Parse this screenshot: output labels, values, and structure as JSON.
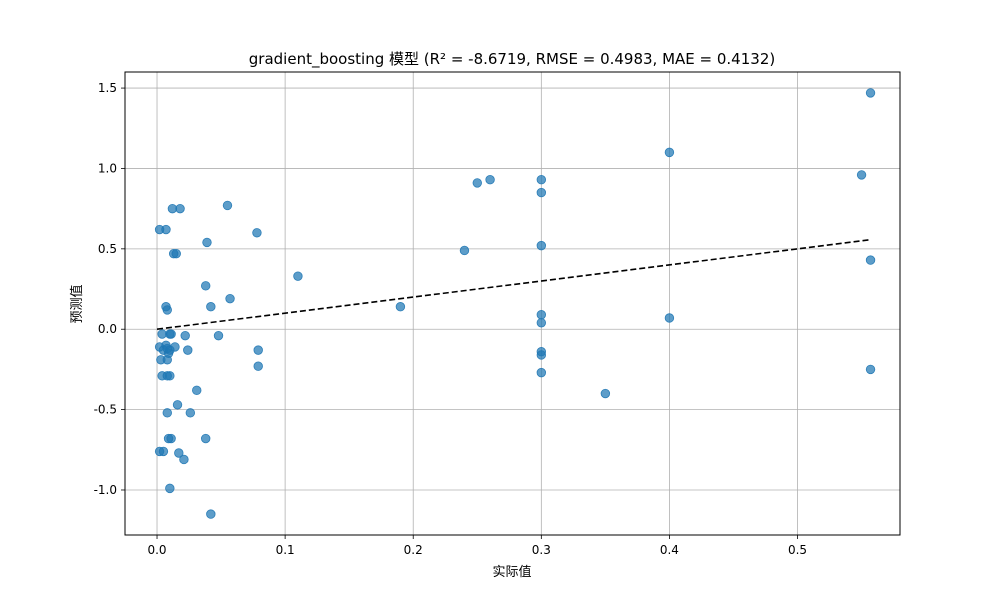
{
  "chart_data": {
    "type": "scatter",
    "title": "gradient_boosting 模型 (R² = -8.6719, RMSE = 0.4983, MAE = 0.4132)",
    "xlabel": "实际值",
    "ylabel": "预测值",
    "xlim": [
      -0.025,
      0.58
    ],
    "ylim": [
      -1.28,
      1.6
    ],
    "x_ticks": [
      0.0,
      0.1,
      0.2,
      0.3,
      0.4,
      0.5
    ],
    "x_tick_labels": [
      "0.0",
      "0.1",
      "0.2",
      "0.3",
      "0.4",
      "0.5"
    ],
    "y_ticks": [
      -1.0,
      -0.5,
      0.0,
      0.5,
      1.0,
      1.5
    ],
    "y_tick_labels": [
      "-1.0",
      "-0.5",
      "0.0",
      "0.5",
      "1.0",
      "1.5"
    ],
    "grid": true,
    "point_color": "#1f77b4",
    "reference_line": {
      "style": "dashed",
      "color": "#000000",
      "x": [
        0.0,
        0.557
      ],
      "y": [
        0.0,
        0.557
      ]
    },
    "points": [
      {
        "x": 0.002,
        "y": 0.62
      },
      {
        "x": 0.007,
        "y": 0.62
      },
      {
        "x": 0.012,
        "y": 0.75
      },
      {
        "x": 0.018,
        "y": 0.75
      },
      {
        "x": 0.013,
        "y": 0.47
      },
      {
        "x": 0.015,
        "y": 0.47
      },
      {
        "x": 0.007,
        "y": 0.14
      },
      {
        "x": 0.008,
        "y": 0.12
      },
      {
        "x": 0.004,
        "y": -0.03
      },
      {
        "x": 0.01,
        "y": -0.03
      },
      {
        "x": 0.011,
        "y": -0.03
      },
      {
        "x": 0.002,
        "y": -0.11
      },
      {
        "x": 0.005,
        "y": -0.13
      },
      {
        "x": 0.007,
        "y": -0.1
      },
      {
        "x": 0.008,
        "y": -0.12
      },
      {
        "x": 0.009,
        "y": -0.15
      },
      {
        "x": 0.01,
        "y": -0.13
      },
      {
        "x": 0.014,
        "y": -0.11
      },
      {
        "x": 0.003,
        "y": -0.19
      },
      {
        "x": 0.008,
        "y": -0.19
      },
      {
        "x": 0.004,
        "y": -0.29
      },
      {
        "x": 0.008,
        "y": -0.29
      },
      {
        "x": 0.01,
        "y": -0.29
      },
      {
        "x": 0.016,
        "y": -0.47
      },
      {
        "x": 0.008,
        "y": -0.52
      },
      {
        "x": 0.009,
        "y": -0.68
      },
      {
        "x": 0.011,
        "y": -0.68
      },
      {
        "x": 0.002,
        "y": -0.76
      },
      {
        "x": 0.005,
        "y": -0.76
      },
      {
        "x": 0.017,
        "y": -0.77
      },
      {
        "x": 0.021,
        "y": -0.81
      },
      {
        "x": 0.01,
        "y": -0.99
      },
      {
        "x": 0.022,
        "y": -0.04
      },
      {
        "x": 0.024,
        "y": -0.13
      },
      {
        "x": 0.026,
        "y": -0.52
      },
      {
        "x": 0.031,
        "y": -0.38
      },
      {
        "x": 0.038,
        "y": 0.27
      },
      {
        "x": 0.039,
        "y": 0.54
      },
      {
        "x": 0.038,
        "y": -0.68
      },
      {
        "x": 0.042,
        "y": 0.14
      },
      {
        "x": 0.042,
        "y": -1.15
      },
      {
        "x": 0.048,
        "y": -0.04
      },
      {
        "x": 0.055,
        "y": 0.77
      },
      {
        "x": 0.057,
        "y": 0.19
      },
      {
        "x": 0.078,
        "y": 0.6
      },
      {
        "x": 0.079,
        "y": -0.13
      },
      {
        "x": 0.079,
        "y": -0.23
      },
      {
        "x": 0.11,
        "y": 0.33
      },
      {
        "x": 0.19,
        "y": 0.14
      },
      {
        "x": 0.24,
        "y": 0.49
      },
      {
        "x": 0.25,
        "y": 0.91
      },
      {
        "x": 0.26,
        "y": 0.93
      },
      {
        "x": 0.3,
        "y": 0.93
      },
      {
        "x": 0.3,
        "y": 0.85
      },
      {
        "x": 0.3,
        "y": 0.52
      },
      {
        "x": 0.3,
        "y": 0.09
      },
      {
        "x": 0.3,
        "y": 0.04
      },
      {
        "x": 0.3,
        "y": -0.14
      },
      {
        "x": 0.3,
        "y": -0.16
      },
      {
        "x": 0.3,
        "y": -0.27
      },
      {
        "x": 0.35,
        "y": -0.4
      },
      {
        "x": 0.4,
        "y": 1.1
      },
      {
        "x": 0.4,
        "y": 0.07
      },
      {
        "x": 0.55,
        "y": 0.96
      },
      {
        "x": 0.557,
        "y": 1.47
      },
      {
        "x": 0.557,
        "y": 0.43
      },
      {
        "x": 0.557,
        "y": -0.25
      }
    ]
  }
}
